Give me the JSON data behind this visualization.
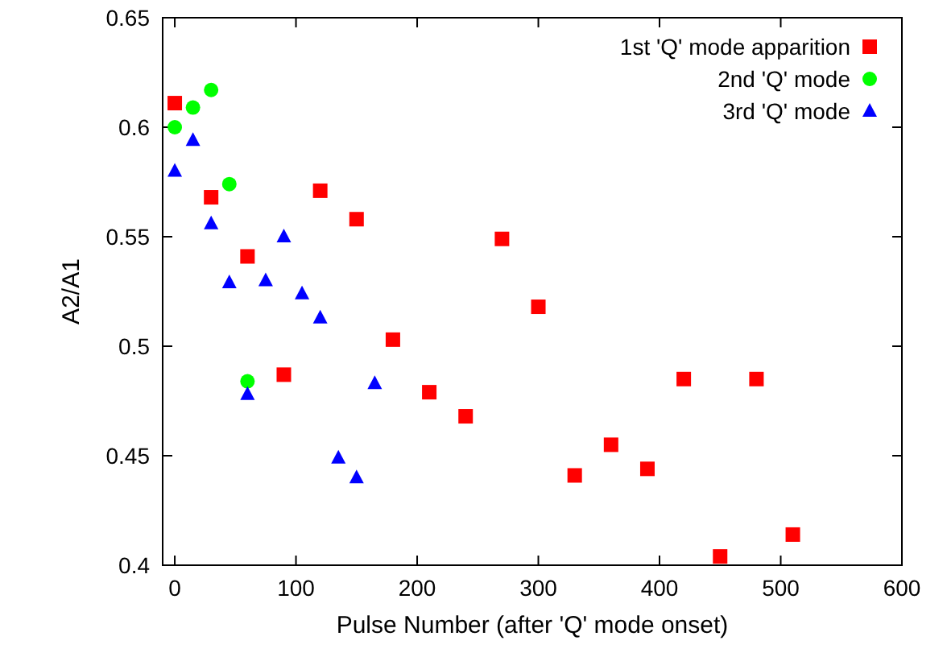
{
  "chart_data": {
    "type": "scatter",
    "xlabel": "Pulse Number (after 'Q' mode onset)",
    "ylabel": "A2/A1",
    "xlim": [
      -10,
      600
    ],
    "ylim": [
      0.4,
      0.65
    ],
    "xticks": [
      0,
      100,
      200,
      300,
      400,
      500,
      600
    ],
    "yticks": [
      0.4,
      0.45,
      0.5,
      0.55,
      0.6,
      0.65
    ],
    "legend": "top right",
    "grid": false,
    "series": [
      {
        "name": "1st 'Q' mode apparition",
        "color": "#ff0000",
        "marker": "square",
        "x": [
          0,
          30,
          60,
          90,
          120,
          150,
          180,
          210,
          240,
          270,
          300,
          330,
          360,
          390,
          420,
          450,
          480,
          510
        ],
        "values": [
          0.611,
          0.568,
          0.541,
          0.487,
          0.571,
          0.558,
          0.503,
          0.479,
          0.468,
          0.549,
          0.518,
          0.441,
          0.455,
          0.444,
          0.485,
          0.404,
          0.485,
          0.414
        ]
      },
      {
        "name": "2nd 'Q' mode",
        "color": "#00ff00",
        "marker": "circle",
        "x": [
          0,
          15,
          30,
          45,
          60
        ],
        "values": [
          0.6,
          0.609,
          0.617,
          0.574,
          0.484
        ]
      },
      {
        "name": "3rd 'Q' mode",
        "color": "#0000ff",
        "marker": "triangle",
        "x": [
          0,
          15,
          30,
          45,
          60,
          75,
          90,
          105,
          120,
          135,
          150,
          165
        ],
        "values": [
          0.58,
          0.594,
          0.556,
          0.529,
          0.478,
          0.53,
          0.55,
          0.524,
          0.513,
          0.449,
          0.44,
          0.483
        ]
      }
    ]
  }
}
